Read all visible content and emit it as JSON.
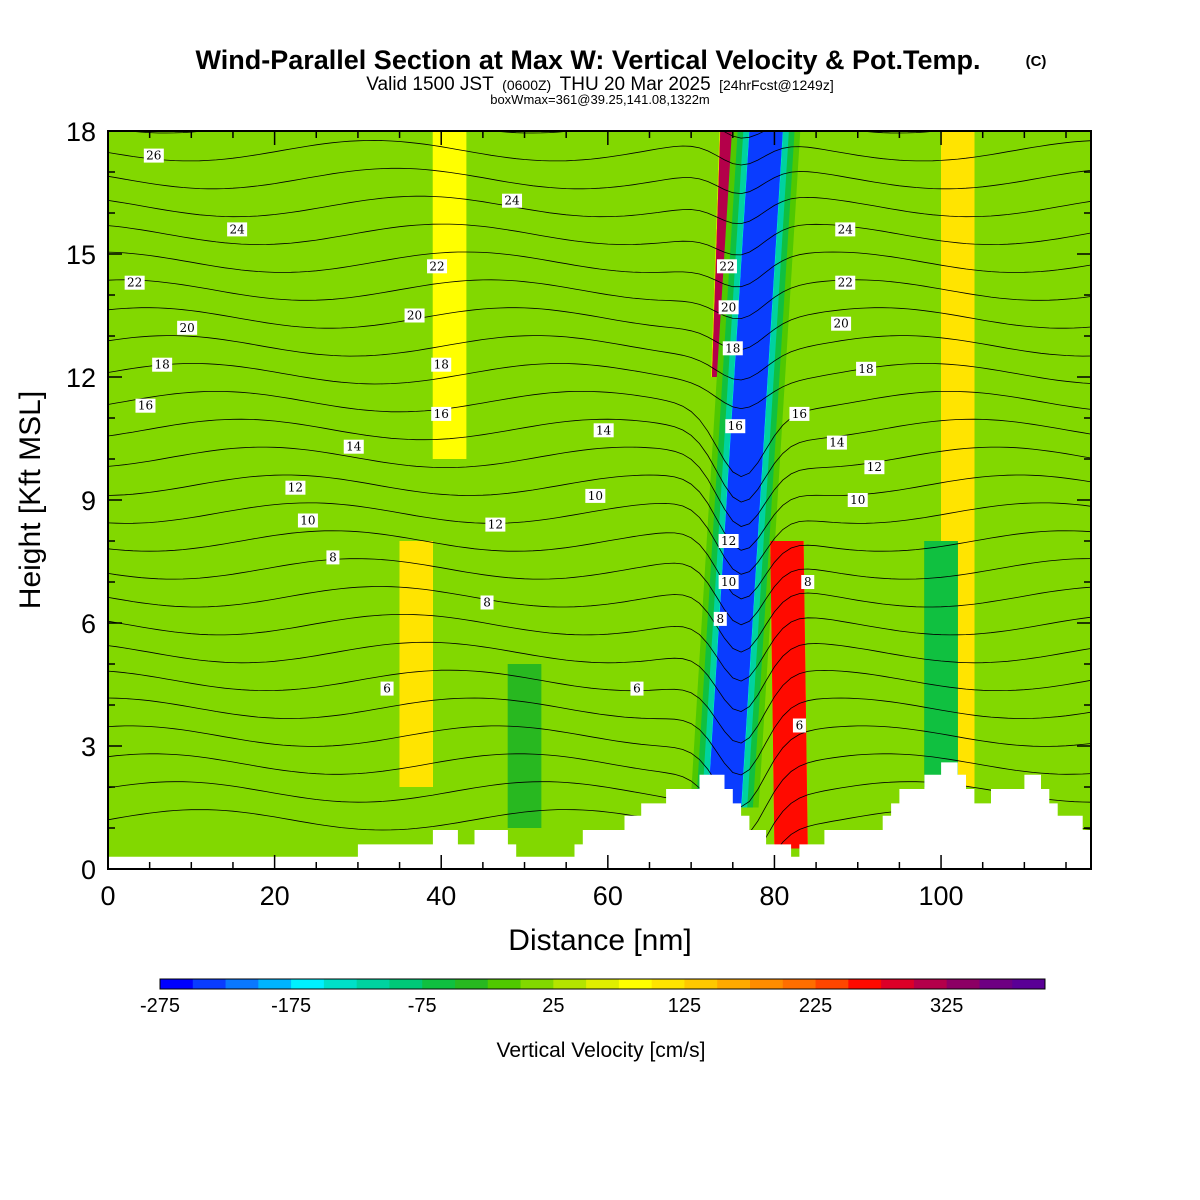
{
  "header": {
    "title": "Wind-Parallel Section at Max W: Vertical Velocity & Pot.Temp.",
    "copyright": "(C)",
    "valid_prefix": "Valid 1500 JST",
    "valid_utc": "(0600Z)",
    "valid_date": "THU 20 Mar 2025",
    "forecast": "[24hrFcst@1249z]",
    "box_info": "boxWmax=361@39.25,141.08,1322m"
  },
  "colorbar": {
    "label": "Vertical Velocity [cm/s]",
    "tick_labels": [
      "-275",
      "-175",
      "-75",
      "25",
      "125",
      "225",
      "325"
    ],
    "levels_start": -275,
    "level_step": 25,
    "colors": [
      "#0000ff",
      "#0a3cff",
      "#0a78ff",
      "#00b4ff",
      "#00f0ff",
      "#00e0c8",
      "#00d2a0",
      "#00c878",
      "#10c040",
      "#28b820",
      "#50c800",
      "#82d800",
      "#b4e400",
      "#e0ee00",
      "#ffff00",
      "#ffe400",
      "#ffc800",
      "#ffaa00",
      "#ff8c00",
      "#ff6e00",
      "#ff4600",
      "#ff0a00",
      "#dc0028",
      "#b4004a",
      "#8c0064",
      "#6e0082",
      "#5a0096"
    ]
  },
  "chart_data": {
    "type": "heatmap",
    "xlabel": "Distance [nm]",
    "ylabel": "Height [Kft MSL]",
    "xlim": [
      0,
      118
    ],
    "ylim": [
      0,
      18
    ],
    "x_ticks": [
      0,
      20,
      40,
      60,
      80,
      100
    ],
    "y_ticks": [
      0,
      3,
      6,
      9,
      12,
      15,
      18
    ],
    "field": "Vertical Velocity",
    "units": "cm/s",
    "max_w": 361,
    "max_w_location": {
      "lat": 39.25,
      "lon": 141.08,
      "height_m": 1322
    },
    "terrain_kft": [
      [
        0,
        0.3
      ],
      [
        30,
        0.3
      ],
      [
        30,
        0.6
      ],
      [
        39,
        0.6
      ],
      [
        39,
        0.95
      ],
      [
        42,
        0.95
      ],
      [
        42,
        0.6
      ],
      [
        44,
        0.6
      ],
      [
        44,
        0.95
      ],
      [
        48,
        0.95
      ],
      [
        48,
        0.6
      ],
      [
        49,
        0.6
      ],
      [
        49,
        0.3
      ],
      [
        56,
        0.3
      ],
      [
        56,
        0.6
      ],
      [
        57,
        0.6
      ],
      [
        57,
        0.95
      ],
      [
        62,
        0.95
      ],
      [
        62,
        1.3
      ],
      [
        64,
        1.3
      ],
      [
        64,
        1.6
      ],
      [
        67,
        1.6
      ],
      [
        67,
        1.95
      ],
      [
        71,
        1.95
      ],
      [
        71,
        2.3
      ],
      [
        74,
        2.3
      ],
      [
        74,
        1.95
      ],
      [
        75,
        1.95
      ],
      [
        75,
        1.6
      ],
      [
        76,
        1.6
      ],
      [
        76,
        1.3
      ],
      [
        77,
        1.3
      ],
      [
        77,
        0.95
      ],
      [
        79,
        0.95
      ],
      [
        79,
        0.6
      ],
      [
        82,
        0.6
      ],
      [
        82,
        0.3
      ],
      [
        83,
        0.3
      ],
      [
        83,
        0.6
      ],
      [
        86,
        0.6
      ],
      [
        86,
        0.95
      ],
      [
        93,
        0.95
      ],
      [
        93,
        1.3
      ],
      [
        94,
        1.3
      ],
      [
        94,
        1.6
      ],
      [
        95,
        1.6
      ],
      [
        95,
        1.95
      ],
      [
        98,
        1.95
      ],
      [
        98,
        2.3
      ],
      [
        100,
        2.3
      ],
      [
        100,
        2.6
      ],
      [
        102,
        2.6
      ],
      [
        102,
        2.3
      ],
      [
        103,
        2.3
      ],
      [
        103,
        1.95
      ],
      [
        104,
        1.95
      ],
      [
        104,
        1.6
      ],
      [
        106,
        1.6
      ],
      [
        106,
        1.95
      ],
      [
        110,
        1.95
      ],
      [
        110,
        2.3
      ],
      [
        112,
        2.3
      ],
      [
        112,
        1.95
      ],
      [
        113,
        1.95
      ],
      [
        113,
        1.6
      ],
      [
        114,
        1.6
      ],
      [
        114,
        1.3
      ],
      [
        117,
        1.3
      ],
      [
        117,
        0.95
      ],
      [
        118,
        0.95
      ]
    ],
    "w_features": [
      {
        "kind": "updraft",
        "x0": 74.5,
        "x1": 75.5,
        "z0": 12,
        "z1": 18,
        "w": 300
      },
      {
        "kind": "downdraft",
        "x0": 74,
        "x1": 79,
        "z0": 1.5,
        "z1": 18,
        "w": -250
      },
      {
        "kind": "updraft",
        "x0": 82,
        "x1": 81.5,
        "z0": 0.5,
        "z1": 8,
        "w": 250
      },
      {
        "kind": "updraft",
        "x0": 37,
        "x1": 37,
        "z0": 2,
        "z1": 8,
        "w": 100
      },
      {
        "kind": "updraft",
        "x0": 41,
        "x1": 41,
        "z0": 10,
        "z1": 18,
        "w": 80
      },
      {
        "kind": "updraft",
        "x0": 102,
        "x1": 102,
        "z0": 2,
        "z1": 18,
        "w": 120
      },
      {
        "kind": "downdraft",
        "x0": 50,
        "x1": 50,
        "z0": 1,
        "z1": 5,
        "w": -50
      },
      {
        "kind": "downdraft",
        "x0": 100,
        "x1": 100,
        "z0": 2,
        "z1": 8,
        "w": -60
      }
    ],
    "theta_labels": [
      {
        "text": "26",
        "x": 5.5,
        "z": 17.4
      },
      {
        "text": "24",
        "x": 15.5,
        "z": 15.6
      },
      {
        "text": "24",
        "x": 48.5,
        "z": 16.3
      },
      {
        "text": "24",
        "x": 88.5,
        "z": 15.6
      },
      {
        "text": "22",
        "x": 3.2,
        "z": 14.3
      },
      {
        "text": "22",
        "x": 39.5,
        "z": 14.7
      },
      {
        "text": "22",
        "x": 74.3,
        "z": 14.7
      },
      {
        "text": "22",
        "x": 88.5,
        "z": 14.3
      },
      {
        "text": "20",
        "x": 9.5,
        "z": 13.2
      },
      {
        "text": "20",
        "x": 36.8,
        "z": 13.5
      },
      {
        "text": "20",
        "x": 74.5,
        "z": 13.7
      },
      {
        "text": "20",
        "x": 88,
        "z": 13.3
      },
      {
        "text": "18",
        "x": 6.5,
        "z": 12.3
      },
      {
        "text": "18",
        "x": 40,
        "z": 12.3
      },
      {
        "text": "18",
        "x": 75,
        "z": 12.7
      },
      {
        "text": "18",
        "x": 91,
        "z": 12.2
      },
      {
        "text": "16",
        "x": 4.5,
        "z": 11.3
      },
      {
        "text": "16",
        "x": 40,
        "z": 11.1
      },
      {
        "text": "16",
        "x": 75.3,
        "z": 10.8
      },
      {
        "text": "16",
        "x": 83,
        "z": 11.1
      },
      {
        "text": "14",
        "x": 29.5,
        "z": 10.3
      },
      {
        "text": "14",
        "x": 59.5,
        "z": 10.7
      },
      {
        "text": "14",
        "x": 87.5,
        "z": 10.4
      },
      {
        "text": "12",
        "x": 22.5,
        "z": 9.3
      },
      {
        "text": "12",
        "x": 46.5,
        "z": 8.4
      },
      {
        "text": "12",
        "x": 74.5,
        "z": 8
      },
      {
        "text": "12",
        "x": 92,
        "z": 9.8
      },
      {
        "text": "10",
        "x": 24,
        "z": 8.5
      },
      {
        "text": "10",
        "x": 58.5,
        "z": 9.1
      },
      {
        "text": "10",
        "x": 74.5,
        "z": 7
      },
      {
        "text": "10",
        "x": 90,
        "z": 9
      },
      {
        "text": "8",
        "x": 27,
        "z": 7.6
      },
      {
        "text": "8",
        "x": 45.5,
        "z": 6.5
      },
      {
        "text": "8",
        "x": 73.5,
        "z": 6.1
      },
      {
        "text": "8",
        "x": 84,
        "z": 7
      },
      {
        "text": "6",
        "x": 33.5,
        "z": 4.4
      },
      {
        "text": "6",
        "x": 63.5,
        "z": 4.4
      },
      {
        "text": "6",
        "x": 83,
        "z": 3.5
      }
    ]
  }
}
